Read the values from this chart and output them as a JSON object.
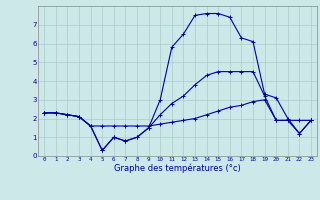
{
  "title": "Graphe des températures (°c)",
  "background_color": "#cce8e8",
  "grid_color": "#aacccc",
  "line_color": "#0000aa",
  "x_labels": [
    "0",
    "1",
    "2",
    "3",
    "4",
    "5",
    "6",
    "7",
    "8",
    "9",
    "10",
    "11",
    "12",
    "13",
    "14",
    "15",
    "16",
    "17",
    "18",
    "19",
    "20",
    "21",
    "22",
    "23"
  ],
  "x_values": [
    0,
    1,
    2,
    3,
    4,
    5,
    6,
    7,
    8,
    9,
    10,
    11,
    12,
    13,
    14,
    15,
    16,
    17,
    18,
    19,
    20,
    21,
    22,
    23
  ],
  "series1": [
    2.3,
    2.3,
    2.2,
    2.1,
    1.6,
    0.3,
    1.0,
    0.8,
    1.0,
    1.5,
    2.2,
    2.8,
    3.2,
    3.8,
    4.3,
    4.5,
    4.5,
    4.5,
    4.5,
    3.2,
    1.9,
    1.9,
    1.2,
    1.9
  ],
  "series2": [
    2.3,
    2.3,
    2.2,
    2.1,
    1.6,
    0.3,
    1.0,
    0.8,
    1.0,
    1.5,
    3.0,
    5.8,
    6.5,
    7.5,
    7.6,
    7.6,
    7.4,
    6.3,
    6.1,
    3.3,
    3.1,
    2.0,
    1.2,
    1.9
  ],
  "series3": [
    2.3,
    2.3,
    2.2,
    2.1,
    1.6,
    1.6,
    1.6,
    1.6,
    1.6,
    1.6,
    1.7,
    1.8,
    1.9,
    2.0,
    2.2,
    2.4,
    2.6,
    2.7,
    2.9,
    3.0,
    1.9,
    1.9,
    1.9,
    1.9
  ],
  "ylim": [
    0,
    8
  ],
  "yticks": [
    0,
    1,
    2,
    3,
    4,
    5,
    6,
    7
  ],
  "figsize": [
    3.2,
    2.0
  ],
  "dpi": 100
}
